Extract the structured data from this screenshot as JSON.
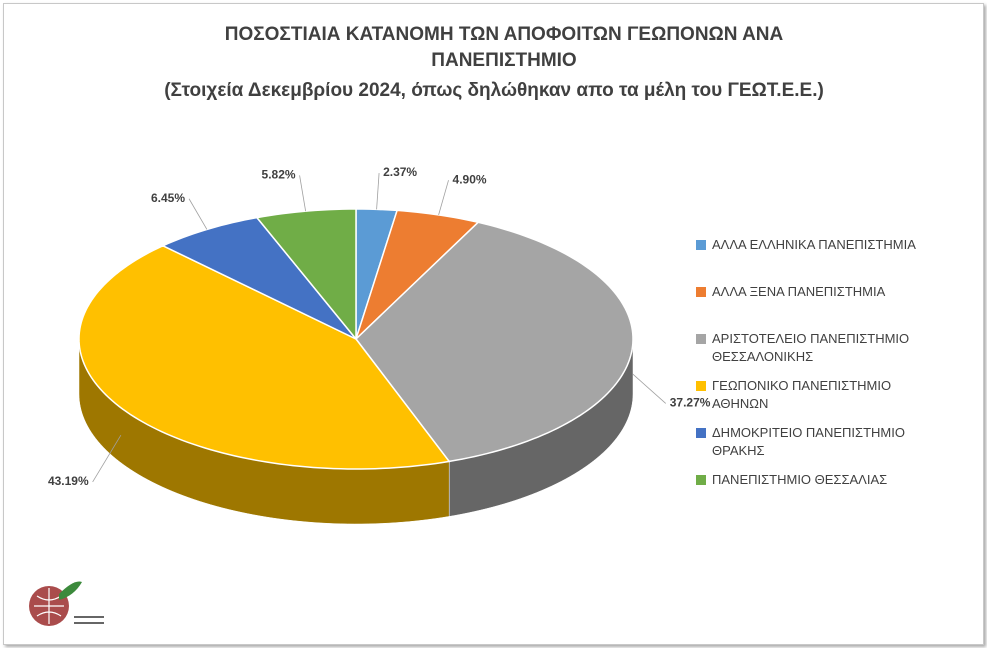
{
  "chart_data": {
    "type": "pie",
    "title": "ΠΟΣΟΣΤΙΑΙΑ ΚΑΤΑΝΟΜΗ ΤΩΝ ΑΠΟΦΟΙΤΩΝ ΓΕΩΠΟΝΩΝ ΑΝΑ ΠΑΝΕΠΙΣΤΗΜΙΟ",
    "subtitle": "(Στοιχεία Δεκεμβρίου 2024, όπως δηλώθηκαν απο τα μέλη του ΓΕΩΤ.Ε.Ε.)",
    "categories": [
      "ΑΛΛΑ ΕΛΛΗΝΙΚΑ ΠΑΝΕΠΙΣΤΗΜΙΑ",
      "ΑΛΛΑ ΞΕΝΑ ΠΑΝΕΠΙΣΤΗΜΙΑ",
      "ΑΡΙΣΤΟΤΕΛΕΙΟ ΠΑΝΕΠΙΣΤΗΜΙΟ ΘΕΣΣΑΛΟΝΙΚΗΣ",
      "ΓΕΩΠΟΝΙΚΟ ΠΑΝΕΠΙΣΤΗΜΙΟ ΑΘΗΝΩΝ",
      "ΔΗΜΟΚΡΙΤΕΙΟ ΠΑΝΕΠΙΣΤΗΜΙΟ ΘΡΑΚΗΣ",
      "ΠΑΝΕΠΙΣΤΗΜΙΟ ΘΕΣΣΑΛΙΑΣ"
    ],
    "values": [
      2.37,
      4.9,
      37.27,
      43.19,
      6.45,
      5.82
    ],
    "value_labels": [
      "2.37%",
      "4.90%",
      "37.27%",
      "43.19%",
      "6.45%",
      "5.82%"
    ],
    "colors": [
      "#5b9bd5",
      "#ed7d31",
      "#a5a5a5",
      "#ffc000",
      "#4472c4",
      "#70ad47"
    ],
    "legend": "right"
  }
}
